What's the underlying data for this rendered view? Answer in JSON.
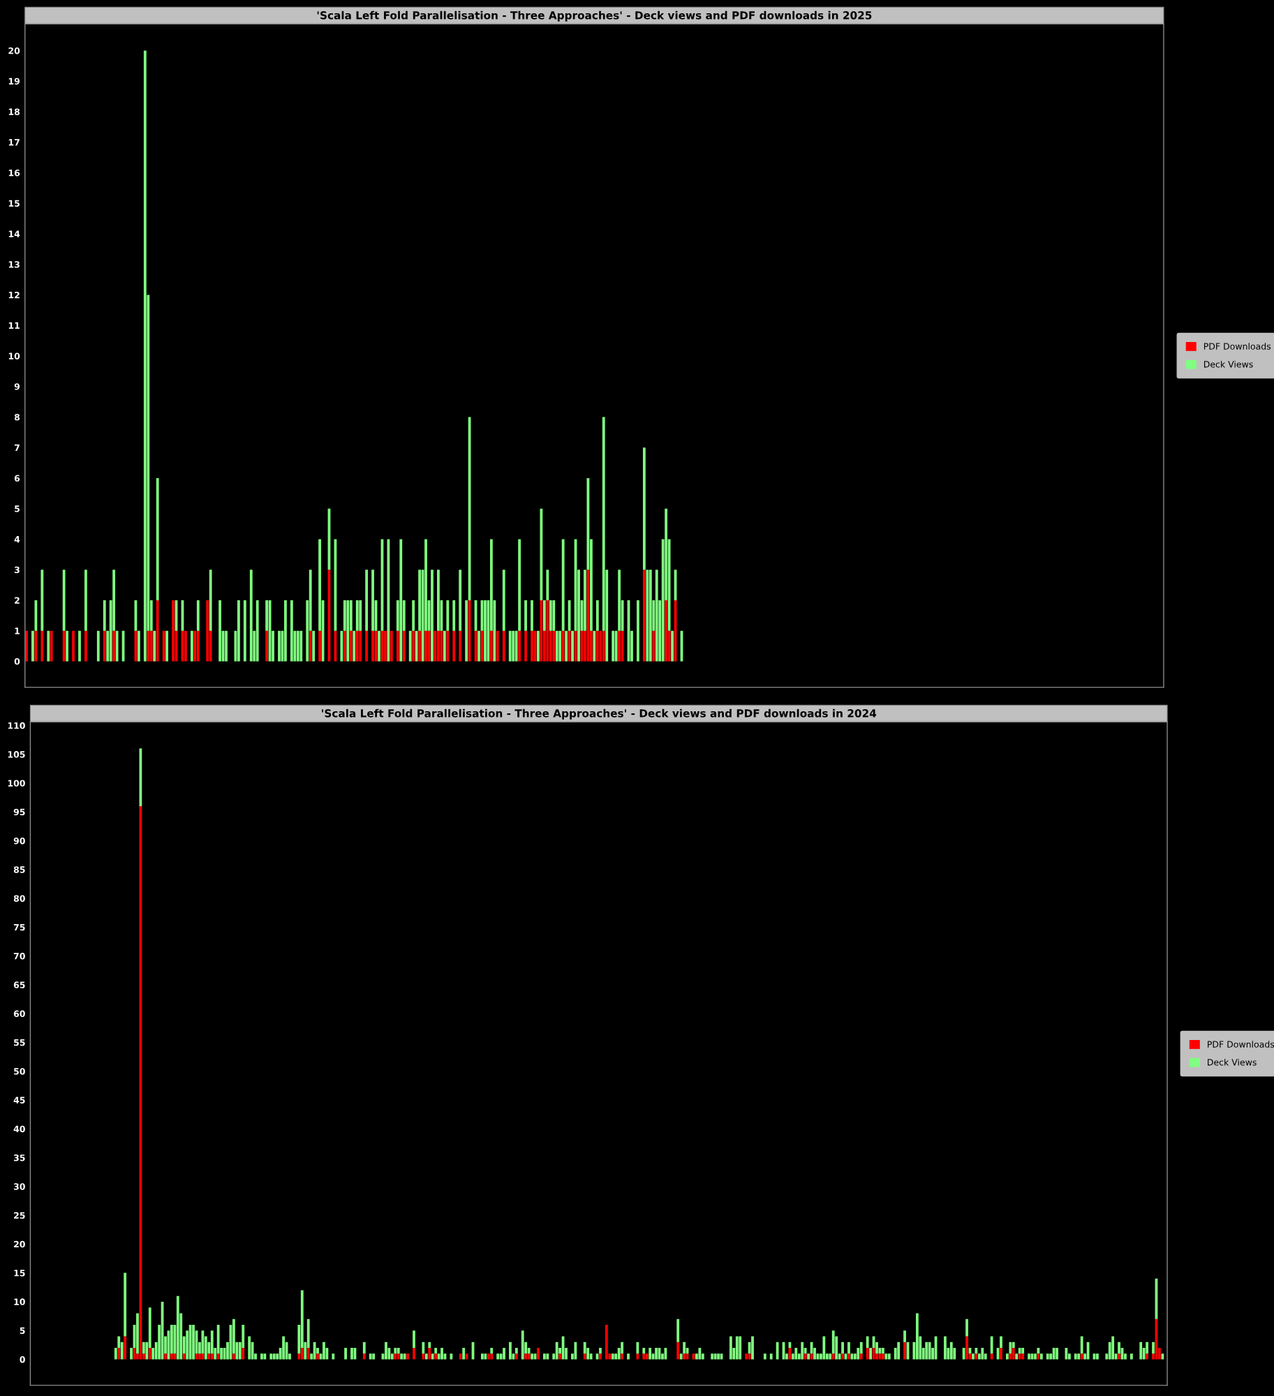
{
  "chart_data": [
    {
      "type": "bar",
      "title": "'Scala Left Fold Parallelisation - Three Approaches' - Deck views and PDF downloads in 2025",
      "stacked": true,
      "legend": "right",
      "tick_labels": "y",
      "ylim": [
        -0.85,
        20.87
      ],
      "yticks": [
        0,
        1,
        2,
        3,
        4,
        5,
        6,
        7,
        8,
        9,
        10,
        11,
        12,
        13,
        14,
        15,
        16,
        17,
        18,
        19,
        20
      ],
      "categories": [
        null,
        null,
        null,
        null,
        null,
        null,
        null,
        null,
        null,
        null,
        null,
        null,
        null,
        null,
        null,
        null,
        null,
        null,
        null,
        null,
        null,
        null,
        null,
        null,
        null,
        null,
        null,
        null,
        null,
        null,
        null,
        null,
        null,
        null,
        null,
        null,
        null,
        null,
        null,
        null,
        null,
        null,
        null,
        null,
        null,
        null,
        null,
        null,
        null,
        null,
        null,
        null,
        null,
        null,
        null,
        null,
        null,
        null,
        null,
        null,
        null,
        null,
        null,
        null,
        null,
        null,
        null,
        null,
        null,
        null,
        null,
        null,
        null,
        null,
        null,
        null,
        null,
        null,
        null,
        null,
        null,
        null,
        null,
        null,
        null,
        null,
        null,
        null,
        null,
        null,
        null,
        null,
        null,
        null,
        null,
        null,
        null,
        null,
        null,
        null,
        null,
        null,
        null,
        null,
        null,
        null,
        null,
        null,
        null,
        null,
        null,
        null,
        null,
        null,
        null,
        null,
        null,
        null,
        null,
        null,
        null,
        null,
        null,
        null,
        null,
        null,
        null,
        null,
        null,
        null,
        null,
        null,
        null,
        null,
        null,
        null,
        null,
        null,
        null,
        null,
        null,
        null,
        null,
        null,
        null,
        null,
        null,
        null,
        null,
        null,
        null,
        null,
        null,
        null,
        null,
        null,
        null,
        null,
        null,
        null,
        null,
        null,
        null,
        null,
        null,
        null,
        null,
        null,
        null,
        null,
        null,
        null,
        null,
        null,
        null,
        null,
        null,
        null,
        null,
        null,
        null,
        null,
        null,
        null,
        null,
        null,
        null,
        null,
        null,
        null,
        null,
        null,
        null,
        null,
        null,
        null,
        null,
        null,
        null,
        null,
        null,
        null,
        null,
        null,
        null,
        null,
        null,
        null,
        null,
        null,
        null,
        null,
        null,
        null,
        null,
        null,
        null,
        null,
        null,
        null,
        null,
        null,
        null,
        null,
        null,
        null,
        null,
        null,
        null,
        null,
        null,
        null,
        null,
        null,
        null,
        null,
        null,
        null,
        null,
        null,
        null,
        null,
        null,
        null,
        null,
        null,
        null,
        null,
        null,
        null,
        null,
        null,
        null,
        null,
        null,
        null,
        null,
        null,
        null,
        null,
        null,
        null,
        null,
        null,
        null,
        null,
        null,
        null,
        null,
        null,
        null,
        null,
        null,
        null,
        null,
        null,
        null,
        null,
        null,
        null,
        null,
        null,
        null,
        null,
        null,
        null,
        null,
        null,
        null,
        null,
        null,
        null,
        null,
        null,
        null,
        null,
        null,
        null,
        null,
        null,
        null,
        null,
        null,
        null,
        null,
        null,
        null,
        null,
        null,
        null,
        null,
        null,
        null,
        null,
        null,
        null,
        null,
        null,
        null,
        null,
        null,
        null,
        null,
        null,
        null,
        null,
        null,
        null,
        null,
        null,
        null,
        null,
        null,
        null,
        null,
        null,
        null,
        null,
        null,
        null,
        null,
        null,
        null,
        null,
        null,
        null,
        null,
        null,
        null,
        null,
        null,
        null,
        null,
        null,
        null,
        null,
        null,
        null,
        null,
        null,
        null,
        null,
        null,
        null,
        null
      ],
      "series": [
        {
          "name": "PDF Downloads",
          "color": "#ff0000",
          "values": [
            1,
            0,
            0,
            1,
            0,
            1,
            0,
            0,
            1,
            0,
            0,
            0,
            1,
            0,
            0,
            1,
            0,
            0,
            0,
            1,
            0,
            0,
            0,
            0,
            0,
            1,
            0,
            0,
            1,
            0,
            0,
            0,
            0,
            0,
            0,
            1,
            0,
            0,
            0,
            1,
            1,
            0,
            2,
            0,
            1,
            0,
            0,
            2,
            1,
            0,
            1,
            1,
            0,
            0,
            1,
            1,
            0,
            0,
            2,
            1,
            0,
            0,
            0,
            0,
            0,
            0,
            0,
            0,
            0,
            0,
            0,
            0,
            0,
            0,
            0,
            0,
            0,
            1,
            0,
            0,
            0,
            0,
            0,
            0,
            0,
            0,
            0,
            0,
            0,
            0,
            0,
            1,
            0,
            0,
            1,
            0,
            0,
            3,
            0,
            1,
            0,
            0,
            1,
            0,
            1,
            0,
            1,
            1,
            0,
            1,
            0,
            1,
            1,
            0,
            1,
            1,
            0,
            1,
            0,
            1,
            0,
            1,
            0,
            0,
            1,
            0,
            1,
            0,
            1,
            1,
            0,
            1,
            1,
            1,
            0,
            1,
            0,
            1,
            0,
            1,
            0,
            0,
            2,
            0,
            1,
            0,
            1,
            0,
            0,
            1,
            0,
            1,
            0,
            1,
            0,
            0,
            0,
            0,
            1,
            0,
            1,
            0,
            1,
            1,
            0,
            2,
            1,
            2,
            1,
            1,
            0,
            0,
            1,
            0,
            1,
            0,
            1,
            0,
            1,
            1,
            3,
            1,
            0,
            1,
            1,
            1,
            0,
            0,
            0,
            0,
            1,
            1,
            0,
            0,
            0,
            0,
            0,
            0,
            3,
            0,
            0,
            1,
            0,
            0,
            0,
            2,
            1,
            0,
            2,
            0,
            0,
            null,
            null,
            null,
            null,
            null,
            null,
            null,
            null,
            null,
            null,
            null,
            null,
            null,
            null,
            null,
            null,
            null,
            null,
            null,
            null,
            null,
            null,
            null,
            null,
            null,
            null,
            null,
            null,
            null,
            null,
            null,
            null,
            null,
            null,
            null,
            null,
            null,
            null,
            null,
            null,
            null,
            null,
            null,
            null,
            null,
            null,
            null,
            null,
            null,
            null,
            null,
            null,
            null,
            null,
            null,
            null,
            null,
            null,
            null,
            null,
            null,
            null,
            null,
            null,
            null,
            null,
            null,
            null,
            null,
            null,
            null,
            null,
            null,
            null,
            null,
            null,
            null,
            null,
            null,
            null,
            null,
            null,
            null,
            null,
            null,
            null,
            null,
            null,
            null,
            null,
            null,
            null,
            null,
            null,
            null,
            null,
            null,
            null,
            null,
            null,
            null,
            null,
            null,
            null,
            null,
            null,
            null,
            null,
            null,
            null,
            null,
            null,
            null,
            null,
            null,
            null,
            null,
            null,
            null,
            null,
            null,
            null,
            null,
            null,
            null,
            null,
            null,
            null,
            null,
            null,
            null,
            null,
            null,
            null,
            null,
            null,
            null,
            null,
            null,
            null,
            null,
            null,
            null,
            null,
            null,
            null,
            null,
            null,
            null,
            null,
            null,
            null,
            null,
            null
          ]
        },
        {
          "name": "Deck Views",
          "color": "#80ff80",
          "values": [
            0,
            0,
            1,
            1,
            0,
            2,
            0,
            1,
            0,
            0,
            0,
            0,
            2,
            1,
            0,
            0,
            0,
            1,
            0,
            2,
            0,
            0,
            0,
            1,
            0,
            1,
            1,
            2,
            2,
            1,
            0,
            1,
            0,
            0,
            0,
            1,
            1,
            0,
            20,
            11,
            1,
            1,
            4,
            0,
            0,
            1,
            0,
            0,
            1,
            0,
            1,
            0,
            0,
            1,
            0,
            1,
            0,
            0,
            0,
            2,
            0,
            0,
            2,
            1,
            1,
            0,
            0,
            1,
            2,
            0,
            2,
            0,
            3,
            1,
            2,
            0,
            0,
            1,
            2,
            1,
            0,
            1,
            1,
            2,
            0,
            2,
            1,
            1,
            1,
            0,
            2,
            2,
            1,
            0,
            3,
            2,
            0,
            2,
            0,
            3,
            0,
            1,
            1,
            2,
            1,
            1,
            1,
            1,
            0,
            2,
            0,
            2,
            1,
            1,
            3,
            0,
            4,
            0,
            0,
            1,
            4,
            1,
            0,
            1,
            1,
            1,
            2,
            3,
            3,
            1,
            3,
            0,
            2,
            1,
            1,
            1,
            0,
            1,
            0,
            2,
            0,
            2,
            6,
            0,
            1,
            1,
            1,
            2,
            2,
            3,
            2,
            0,
            0,
            2,
            0,
            1,
            1,
            1,
            3,
            0,
            1,
            0,
            1,
            0,
            1,
            3,
            1,
            1,
            1,
            1,
            1,
            1,
            3,
            1,
            1,
            1,
            3,
            3,
            1,
            2,
            3,
            3,
            1,
            1,
            0,
            7,
            3,
            0,
            1,
            1,
            2,
            1,
            0,
            2,
            1,
            0,
            2,
            0,
            4,
            3,
            3,
            1,
            3,
            2,
            4,
            3,
            3,
            1,
            1,
            0,
            1,
            null,
            null,
            null,
            null,
            null,
            null,
            null,
            null,
            null,
            null,
            null,
            null,
            null,
            null,
            null,
            null,
            null,
            null,
            null,
            null,
            null,
            null,
            null,
            null,
            null,
            null,
            null,
            null,
            null,
            null,
            null,
            null,
            null,
            null,
            null,
            null,
            null,
            null,
            null,
            null,
            null,
            null,
            null,
            null,
            null,
            null,
            null,
            null,
            null,
            null,
            null,
            null,
            null,
            null,
            null,
            null,
            null,
            null,
            null,
            null,
            null,
            null,
            null,
            null,
            null,
            null,
            null,
            null,
            null,
            null,
            null,
            null,
            null,
            null,
            null,
            null,
            null,
            null,
            null,
            null,
            null,
            null,
            null,
            null,
            null,
            null,
            null,
            null,
            null,
            null,
            null,
            null,
            null,
            null,
            null,
            null,
            null,
            null,
            null,
            null,
            null,
            null,
            null,
            null,
            null,
            null,
            null,
            null,
            null,
            null,
            null,
            null,
            null,
            null,
            null,
            null,
            null,
            null,
            null,
            null,
            null,
            null,
            null,
            null,
            null,
            null,
            null,
            null,
            null,
            null,
            null,
            null,
            null,
            null,
            null,
            null,
            null,
            null,
            null,
            null,
            null,
            null,
            null,
            null,
            null,
            null,
            null,
            null,
            null,
            null,
            null,
            null,
            null,
            null
          ]
        }
      ]
    },
    {
      "type": "bar",
      "title": "'Scala Left Fold Parallelisation - Three Approaches' - Deck views and PDF downloads in 2024",
      "stacked": true,
      "legend": "right",
      "tick_labels": "y",
      "ylim": [
        -4.5,
        110.6
      ],
      "yticks": [
        0,
        5,
        10,
        15,
        20,
        25,
        30,
        35,
        40,
        45,
        50,
        55,
        60,
        65,
        70,
        75,
        80,
        85,
        90,
        95,
        100,
        105,
        110
      ],
      "categories": [
        null,
        null,
        null,
        null,
        null,
        null,
        null,
        null,
        null,
        null,
        null,
        null,
        null,
        null,
        null,
        null,
        null,
        null,
        null,
        null,
        null,
        null,
        null,
        null,
        null,
        null,
        null,
        null,
        null,
        null,
        null,
        null,
        null,
        null,
        null,
        null,
        null,
        null,
        null,
        null,
        null,
        null,
        null,
        null,
        null,
        null,
        null,
        null,
        null,
        null,
        null,
        null,
        null,
        null,
        null,
        null,
        null,
        null,
        null,
        null,
        null,
        null,
        null,
        null,
        null,
        null,
        null,
        null,
        null,
        null,
        null,
        null,
        null,
        null,
        null,
        null,
        null,
        null,
        null,
        null,
        null,
        null,
        null,
        null,
        null,
        null,
        null,
        null,
        null,
        null,
        null,
        null,
        null,
        null,
        null,
        null,
        null,
        null,
        null,
        null,
        null,
        null,
        null,
        null,
        null,
        null,
        null,
        null,
        null,
        null,
        null,
        null,
        null,
        null,
        null,
        null,
        null,
        null,
        null,
        null,
        null,
        null,
        null,
        null,
        null,
        null,
        null,
        null,
        null,
        null,
        null,
        null,
        null,
        null,
        null,
        null,
        null,
        null,
        null,
        null,
        null,
        null,
        null,
        null,
        null,
        null,
        null,
        null,
        null,
        null,
        null,
        null,
        null,
        null,
        null,
        null,
        null,
        null,
        null,
        null,
        null,
        null,
        null,
        null,
        null,
        null,
        null,
        null,
        null,
        null,
        null,
        null,
        null,
        null,
        null,
        null,
        null,
        null,
        null,
        null,
        null,
        null,
        null,
        null,
        null,
        null,
        null,
        null,
        null,
        null,
        null,
        null,
        null,
        null,
        null,
        null,
        null,
        null,
        null,
        null,
        null,
        null,
        null,
        null,
        null,
        null,
        null,
        null,
        null,
        null,
        null,
        null,
        null,
        null,
        null,
        null,
        null,
        null,
        null,
        null,
        null,
        null,
        null,
        null,
        null,
        null,
        null,
        null,
        null,
        null,
        null,
        null,
        null,
        null,
        null,
        null,
        null,
        null,
        null,
        null,
        null,
        null,
        null,
        null,
        null,
        null,
        null,
        null,
        null,
        null,
        null,
        null,
        null,
        null,
        null,
        null,
        null,
        null,
        null,
        null,
        null,
        null,
        null,
        null,
        null,
        null,
        null,
        null,
        null,
        null,
        null,
        null,
        null,
        null,
        null,
        null,
        null,
        null,
        null,
        null,
        null,
        null,
        null,
        null,
        null,
        null,
        null,
        null,
        null,
        null,
        null,
        null,
        null,
        null,
        null,
        null,
        null,
        null,
        null,
        null,
        null,
        null,
        null,
        null,
        null,
        null,
        null,
        null,
        null,
        null,
        null,
        null,
        null,
        null,
        null,
        null,
        null,
        null,
        null,
        null,
        null,
        null,
        null,
        null,
        null,
        null,
        null,
        null,
        null,
        null,
        null,
        null,
        null,
        null,
        null,
        null,
        null,
        null,
        null,
        null,
        null,
        null,
        null,
        null,
        null,
        null,
        null,
        null,
        null,
        null,
        null,
        null,
        null,
        null,
        null,
        null,
        null,
        null,
        null,
        null,
        null,
        null,
        null,
        null,
        null,
        null
      ],
      "series": [
        {
          "name": "PDF Downloads",
          "color": "#ff0000",
          "values": [
            null,
            null,
            null,
            null,
            null,
            null,
            null,
            null,
            null,
            null,
            null,
            null,
            null,
            null,
            null,
            null,
            null,
            null,
            null,
            null,
            null,
            null,
            null,
            null,
            null,
            null,
            null,
            0,
            2,
            0,
            4,
            0,
            0,
            2,
            1,
            96,
            1,
            0,
            2,
            0,
            0,
            0,
            0,
            1,
            0,
            1,
            1,
            0,
            0,
            1,
            0,
            0,
            0,
            1,
            1,
            1,
            0,
            1,
            1,
            0,
            1,
            0,
            0,
            0,
            0,
            1,
            0,
            0,
            2,
            0,
            0,
            0,
            0,
            0,
            0,
            0,
            0,
            0,
            0,
            0,
            0,
            0,
            0,
            0,
            0,
            0,
            1,
            2,
            0,
            2,
            0,
            0,
            1,
            0,
            0,
            0,
            0,
            0,
            0,
            0,
            0,
            0,
            0,
            0,
            0,
            0,
            0,
            1,
            0,
            0,
            0,
            0,
            0,
            0,
            0,
            0,
            0,
            1,
            1,
            0,
            0,
            1,
            0,
            2,
            0,
            0,
            1,
            0,
            2,
            0,
            1,
            0,
            0,
            0,
            0,
            0,
            0,
            0,
            1,
            0,
            1,
            0,
            0,
            0,
            0,
            0,
            0,
            1,
            1,
            0,
            0,
            0,
            0,
            0,
            0,
            0,
            1,
            0,
            0,
            1,
            1,
            0,
            0,
            2,
            0,
            0,
            0,
            0,
            0,
            0,
            1,
            0,
            0,
            0,
            0,
            0,
            0,
            0,
            1,
            0,
            0,
            0,
            0,
            1,
            0,
            6,
            1,
            0,
            0,
            0,
            1,
            0,
            0,
            0,
            0,
            1,
            0,
            1,
            1,
            0,
            0,
            0,
            0,
            0,
            0,
            0,
            0,
            0,
            3,
            0,
            1,
            1,
            0,
            1,
            0,
            0,
            0,
            0,
            0,
            0,
            0,
            0,
            0,
            0,
            0,
            0,
            0,
            0,
            0,
            0,
            1,
            1,
            0,
            0,
            0,
            0,
            0,
            0,
            0,
            0,
            0,
            0,
            0,
            0,
            2,
            0,
            0,
            0,
            0,
            1,
            0,
            1,
            0,
            0,
            0,
            0,
            0,
            0,
            1,
            0,
            0,
            1,
            0,
            1,
            0,
            0,
            0,
            1,
            0,
            2,
            0,
            2,
            1,
            1,
            1,
            0,
            0,
            0,
            0,
            0,
            0,
            3,
            0,
            0,
            0,
            0,
            0,
            0,
            0,
            0,
            0,
            0,
            0,
            0,
            0,
            0,
            0,
            0,
            0,
            0,
            0,
            4,
            1,
            0,
            1,
            0,
            0,
            0,
            0,
            1,
            0,
            0,
            2,
            0,
            0,
            1,
            2,
            0,
            1,
            1,
            0,
            0,
            0,
            0,
            1,
            0,
            0,
            0,
            0,
            0,
            0,
            0,
            0,
            0,
            0,
            0,
            0,
            0,
            1,
            0,
            0,
            0,
            0,
            0,
            0,
            0,
            0,
            0,
            0,
            0,
            1,
            0,
            0,
            0,
            0,
            0,
            0,
            0,
            0,
            1,
            0,
            1,
            7,
            2,
            0,
            null
          ]
        },
        {
          "name": "Deck Views",
          "color": "#80ff80",
          "values": [
            null,
            null,
            null,
            null,
            null,
            null,
            null,
            null,
            null,
            null,
            null,
            null,
            null,
            null,
            null,
            null,
            null,
            null,
            null,
            null,
            null,
            null,
            null,
            null,
            null,
            null,
            null,
            2,
            2,
            3,
            11,
            0,
            2,
            4,
            7,
            10,
            2,
            3,
            7,
            2,
            3,
            6,
            10,
            3,
            5,
            5,
            5,
            11,
            8,
            3,
            5,
            6,
            6,
            4,
            2,
            4,
            4,
            2,
            4,
            2,
            5,
            2,
            2,
            3,
            6,
            6,
            3,
            3,
            4,
            0,
            4,
            3,
            1,
            0,
            1,
            1,
            0,
            1,
            1,
            1,
            2,
            4,
            3,
            1,
            0,
            0,
            5,
            10,
            3,
            5,
            1,
            3,
            1,
            1,
            3,
            2,
            0,
            1,
            0,
            0,
            0,
            2,
            0,
            2,
            2,
            0,
            0,
            2,
            0,
            1,
            1,
            0,
            0,
            1,
            3,
            2,
            1,
            1,
            1,
            1,
            1,
            0,
            0,
            3,
            0,
            0,
            2,
            1,
            1,
            1,
            1,
            1,
            2,
            1,
            0,
            1,
            0,
            0,
            0,
            2,
            0,
            0,
            3,
            0,
            0,
            1,
            1,
            0,
            1,
            0,
            1,
            1,
            2,
            0,
            3,
            1,
            1,
            0,
            5,
            2,
            1,
            1,
            1,
            0,
            0,
            1,
            1,
            0,
            1,
            3,
            1,
            4,
            2,
            0,
            1,
            3,
            0,
            0,
            2,
            2,
            1,
            0,
            1,
            1,
            0,
            0,
            0,
            1,
            1,
            2,
            2,
            0,
            1,
            0,
            0,
            2,
            0,
            1,
            0,
            2,
            1,
            2,
            2,
            1,
            2,
            0,
            0,
            0,
            4,
            1,
            2,
            1,
            0,
            0,
            1,
            2,
            1,
            0,
            0,
            1,
            1,
            1,
            1,
            0,
            0,
            4,
            2,
            4,
            4,
            0,
            0,
            2,
            4,
            0,
            0,
            0,
            1,
            0,
            1,
            0,
            3,
            0,
            3,
            1,
            1,
            1,
            2,
            1,
            3,
            1,
            1,
            2,
            2,
            1,
            1,
            4,
            1,
            1,
            4,
            4,
            1,
            2,
            1,
            2,
            1,
            1,
            2,
            2,
            0,
            2,
            2,
            2,
            2,
            1,
            1,
            1,
            1,
            0,
            2,
            3,
            0,
            2,
            3,
            0,
            3,
            8,
            4,
            2,
            3,
            3,
            2,
            4,
            0,
            0,
            4,
            2,
            3,
            2,
            0,
            0,
            2,
            3,
            1,
            1,
            1,
            1,
            2,
            1,
            0,
            3,
            0,
            2,
            2,
            0,
            1,
            2,
            1,
            1,
            1,
            1,
            0,
            1,
            1,
            1,
            1,
            1,
            0,
            1,
            1,
            2,
            2,
            0,
            0,
            2,
            1,
            0,
            1,
            1,
            3,
            1,
            3,
            0,
            1,
            1,
            0,
            0,
            1,
            3,
            4,
            1,
            2,
            2,
            1,
            0,
            1,
            0,
            0,
            3,
            2,
            2,
            0,
            2,
            7,
            0,
            1,
            null
          ]
        }
      ]
    }
  ]
}
